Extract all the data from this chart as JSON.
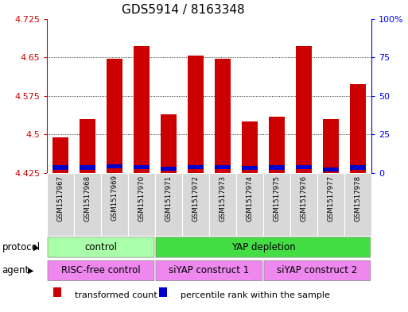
{
  "title": "GDS5914 / 8163348",
  "samples": [
    "GSM1517967",
    "GSM1517968",
    "GSM1517969",
    "GSM1517970",
    "GSM1517971",
    "GSM1517972",
    "GSM1517973",
    "GSM1517974",
    "GSM1517975",
    "GSM1517976",
    "GSM1517977",
    "GSM1517978"
  ],
  "bar_tops": [
    4.495,
    4.53,
    4.648,
    4.672,
    4.54,
    4.653,
    4.648,
    4.525,
    4.535,
    4.672,
    4.53,
    4.598
  ],
  "blue_bottoms": [
    4.432,
    4.432,
    4.434,
    4.433,
    4.43,
    4.433,
    4.433,
    4.431,
    4.432,
    4.433,
    4.428,
    4.432
  ],
  "blue_tops": [
    4.44,
    4.44,
    4.442,
    4.441,
    4.438,
    4.441,
    4.441,
    4.439,
    4.44,
    4.441,
    4.436,
    4.44
  ],
  "bar_bottom": 4.425,
  "ylim": [
    4.425,
    4.725
  ],
  "yticks_left": [
    4.425,
    4.5,
    4.575,
    4.65,
    4.725
  ],
  "yticks_right_vals": [
    0,
    25,
    50,
    75,
    100
  ],
  "bar_color": "#cc0000",
  "blue_color": "#0000cc",
  "protocol_groups": [
    {
      "label": "control",
      "start": 0,
      "end": 4,
      "color": "#aaffaa"
    },
    {
      "label": "YAP depletion",
      "start": 4,
      "end": 12,
      "color": "#44dd44"
    }
  ],
  "agent_groups": [
    {
      "label": "RISC-free control",
      "start": 0,
      "end": 4,
      "color": "#ee88ee"
    },
    {
      "label": "siYAP construct 1",
      "start": 4,
      "end": 8,
      "color": "#ee88ee"
    },
    {
      "label": "siYAP construct 2",
      "start": 8,
      "end": 12,
      "color": "#ee88ee"
    }
  ],
  "protocol_label": "protocol",
  "agent_label": "agent",
  "legend_items": [
    {
      "color": "#cc0000",
      "label": "transformed count"
    },
    {
      "color": "#0000cc",
      "label": "percentile rank within the sample"
    }
  ],
  "bar_width": 0.6,
  "left_tick_color": "#cc0000",
  "right_tick_color": "#0000ff",
  "title_fontsize": 11,
  "tick_fontsize": 8
}
